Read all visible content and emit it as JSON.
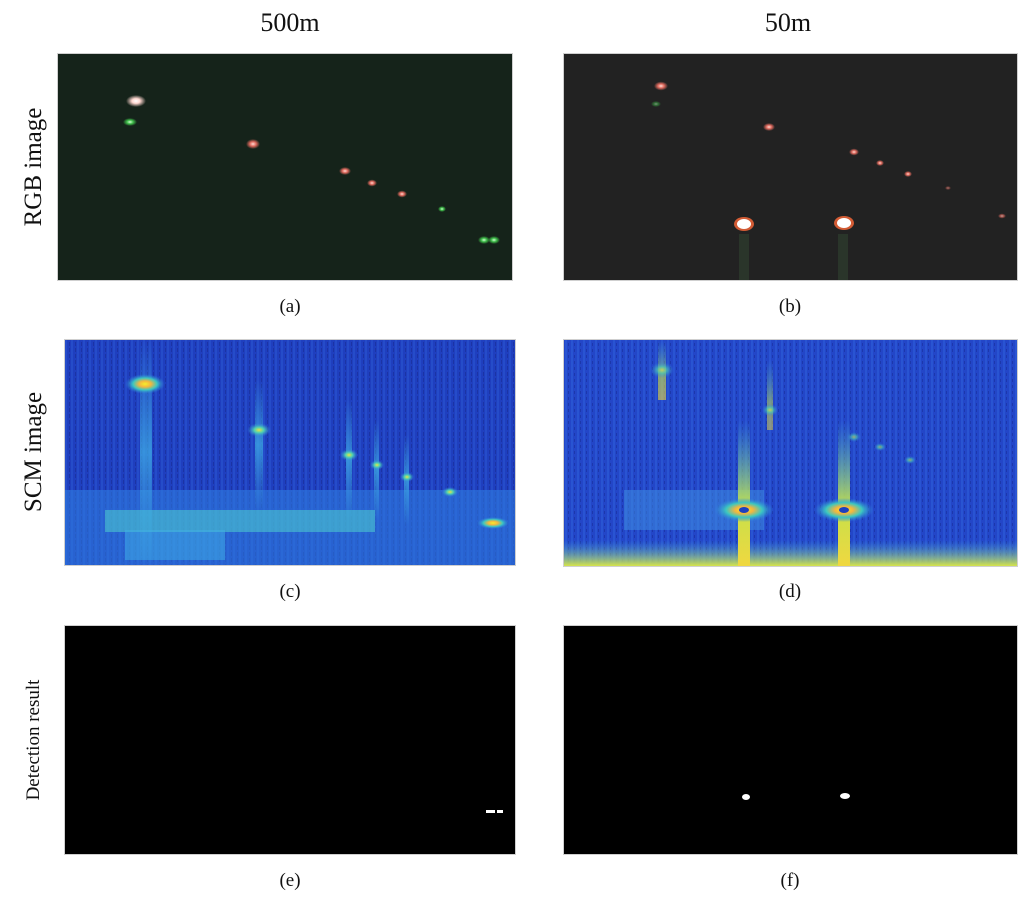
{
  "columns": {
    "left_title": "500m",
    "right_title": "50m"
  },
  "rows": {
    "rgb_label": "RGB image",
    "scm_label": "SCM image",
    "detection_label": "Detection result"
  },
  "captions": [
    "(a)",
    "(b)",
    "(c)",
    "(d)",
    "(e)",
    "(f)"
  ],
  "colors": {
    "rgb_bg_500m": "#15231a",
    "rgb_bg_50m": "#222222",
    "scm_blue": "#1f3fbf",
    "scm_yellow": "#f4ef2a",
    "detection_bg": "#000000",
    "detection_fg": "#ffffff"
  }
}
